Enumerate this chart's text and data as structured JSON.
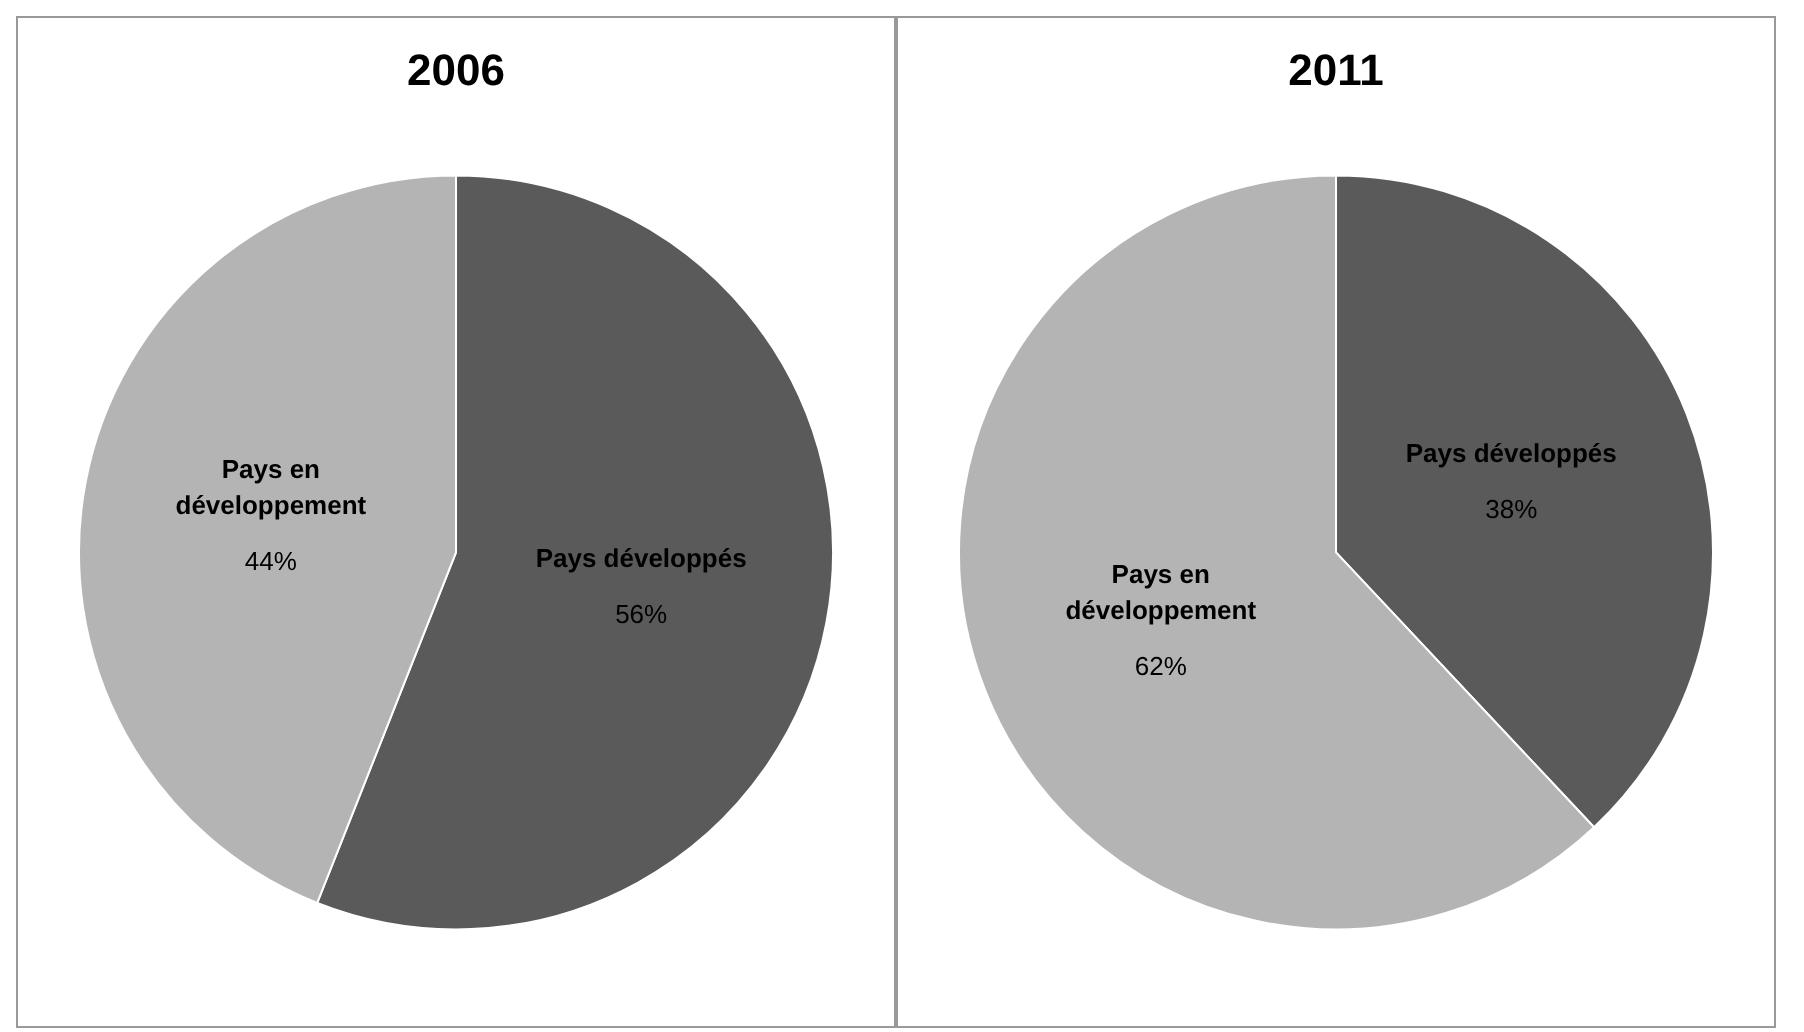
{
  "chart_data": [
    {
      "type": "pie",
      "title": "2006",
      "categories": [
        "Pays développés",
        "Pays en développement"
      ],
      "values": [
        56,
        44
      ],
      "colors": [
        "#5a5a5a",
        "#b4b4b4"
      ],
      "value_labels": [
        "56%",
        "44%"
      ]
    },
    {
      "type": "pie",
      "title": "2011",
      "categories": [
        "Pays développés",
        "Pays en développement"
      ],
      "values": [
        38,
        62
      ],
      "colors": [
        "#5a5a5a",
        "#b4b4b4"
      ],
      "value_labels": [
        "38%",
        "62%"
      ]
    }
  ]
}
